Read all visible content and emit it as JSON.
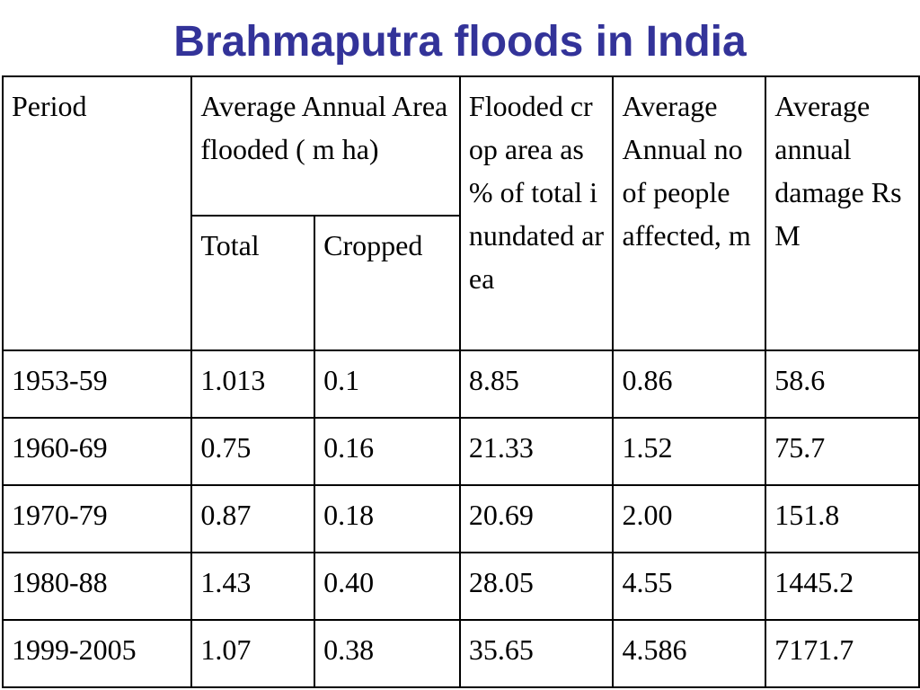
{
  "title": "Brahmaputra floods in India",
  "table": {
    "headers": {
      "period": "Period",
      "area_flooded": "Average Annual Area flooded ( m ha)",
      "total": "Total",
      "cropped": "Cropped",
      "crop_pct": "Flooded crop area as % of total inundated area",
      "people": "Average Annual no of people affected, m",
      "damage": "Average annual damage Rs M"
    },
    "rows": [
      {
        "period": "1953-59",
        "total": "1.013",
        "cropped": "0.1",
        "crop_pct": "8.85",
        "people": "0.86",
        "damage": "58.6"
      },
      {
        "period": "1960-69",
        "total": "0.75",
        "cropped": "0.16",
        "crop_pct": "21.33",
        "people": "1.52",
        "damage": "75.7"
      },
      {
        "period": "1970-79",
        "total": "0.87",
        "cropped": "0.18",
        "crop_pct": "20.69",
        "people": "2.00",
        "damage": "151.8"
      },
      {
        "period": "1980-88",
        "total": "1.43",
        "cropped": "0.40",
        "crop_pct": "28.05",
        "people": "4.55",
        "damage": "1445.2"
      },
      {
        "period": "1999-2005",
        "total": "1.07",
        "cropped": "0.38",
        "crop_pct": "35.65",
        "people": "4.586",
        "damage": "7171.7"
      }
    ]
  }
}
